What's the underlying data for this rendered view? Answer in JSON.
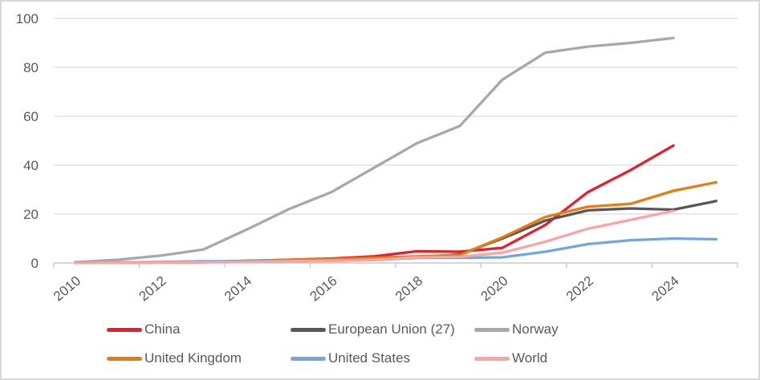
{
  "chart_data": {
    "type": "line",
    "title": "",
    "xlabel": "",
    "ylabel": "",
    "ylim": [
      0,
      100
    ],
    "yticks": [
      0,
      20,
      40,
      60,
      80,
      100
    ],
    "xticks": [
      2010,
      2012,
      2014,
      2016,
      2018,
      2020,
      2022,
      2024
    ],
    "categories": [
      2010,
      2011,
      2012,
      2013,
      2014,
      2015,
      2016,
      2017,
      2018,
      2019,
      2020,
      2021,
      2022,
      2023,
      2024,
      2025
    ],
    "grid": "horizontal",
    "legend_position": "bottom",
    "series": [
      {
        "name": "China",
        "color": "#e2202e",
        "values": [
          0.1,
          0.1,
          0.2,
          0.4,
          0.8,
          1.3,
          1.8,
          2.7,
          4.8,
          4.6,
          6.2,
          15.5,
          29,
          38,
          48,
          null
        ]
      },
      {
        "name": "European Union (27)",
        "color": "#575757",
        "values": [
          0.1,
          0.2,
          0.3,
          0.5,
          0.8,
          1.2,
          1.3,
          1.6,
          2.3,
          3.5,
          10,
          17.3,
          21.5,
          22.3,
          21.8,
          25.3
        ]
      },
      {
        "name": "Norway",
        "color": "#a8a8a8",
        "values": [
          0.3,
          1.3,
          3,
          5.5,
          13.5,
          22,
          29,
          39,
          49,
          56,
          75,
          86,
          88.5,
          90,
          92,
          null
        ]
      },
      {
        "name": "United Kingdom",
        "color": "#e67d13",
        "values": [
          0.1,
          0.1,
          0.2,
          0.3,
          0.9,
          1.3,
          1.6,
          2.1,
          2.7,
          3.2,
          10.5,
          18.8,
          23,
          24.2,
          29.5,
          33
        ]
      },
      {
        "name": "United States",
        "color": "#72a7db",
        "values": [
          0,
          0.2,
          0.4,
          0.7,
          0.7,
          0.7,
          0.9,
          1.2,
          2.1,
          2.1,
          2.3,
          4.6,
          7.7,
          9.3,
          10,
          9.7
        ]
      },
      {
        "name": "World",
        "color": "#f8a5a5",
        "values": [
          0,
          0.1,
          0.2,
          0.3,
          0.4,
          0.7,
          0.9,
          1.3,
          2.3,
          2.5,
          4.2,
          8.7,
          14,
          17.6,
          21.3,
          null
        ]
      }
    ],
    "colors": {
      "gridline": "#d9d9d9",
      "axis_line": "#bfbfbf",
      "tick": "#c6c6c6",
      "label_text": "#595959",
      "border": "#d9d9d9",
      "background": "#ffffff"
    }
  }
}
